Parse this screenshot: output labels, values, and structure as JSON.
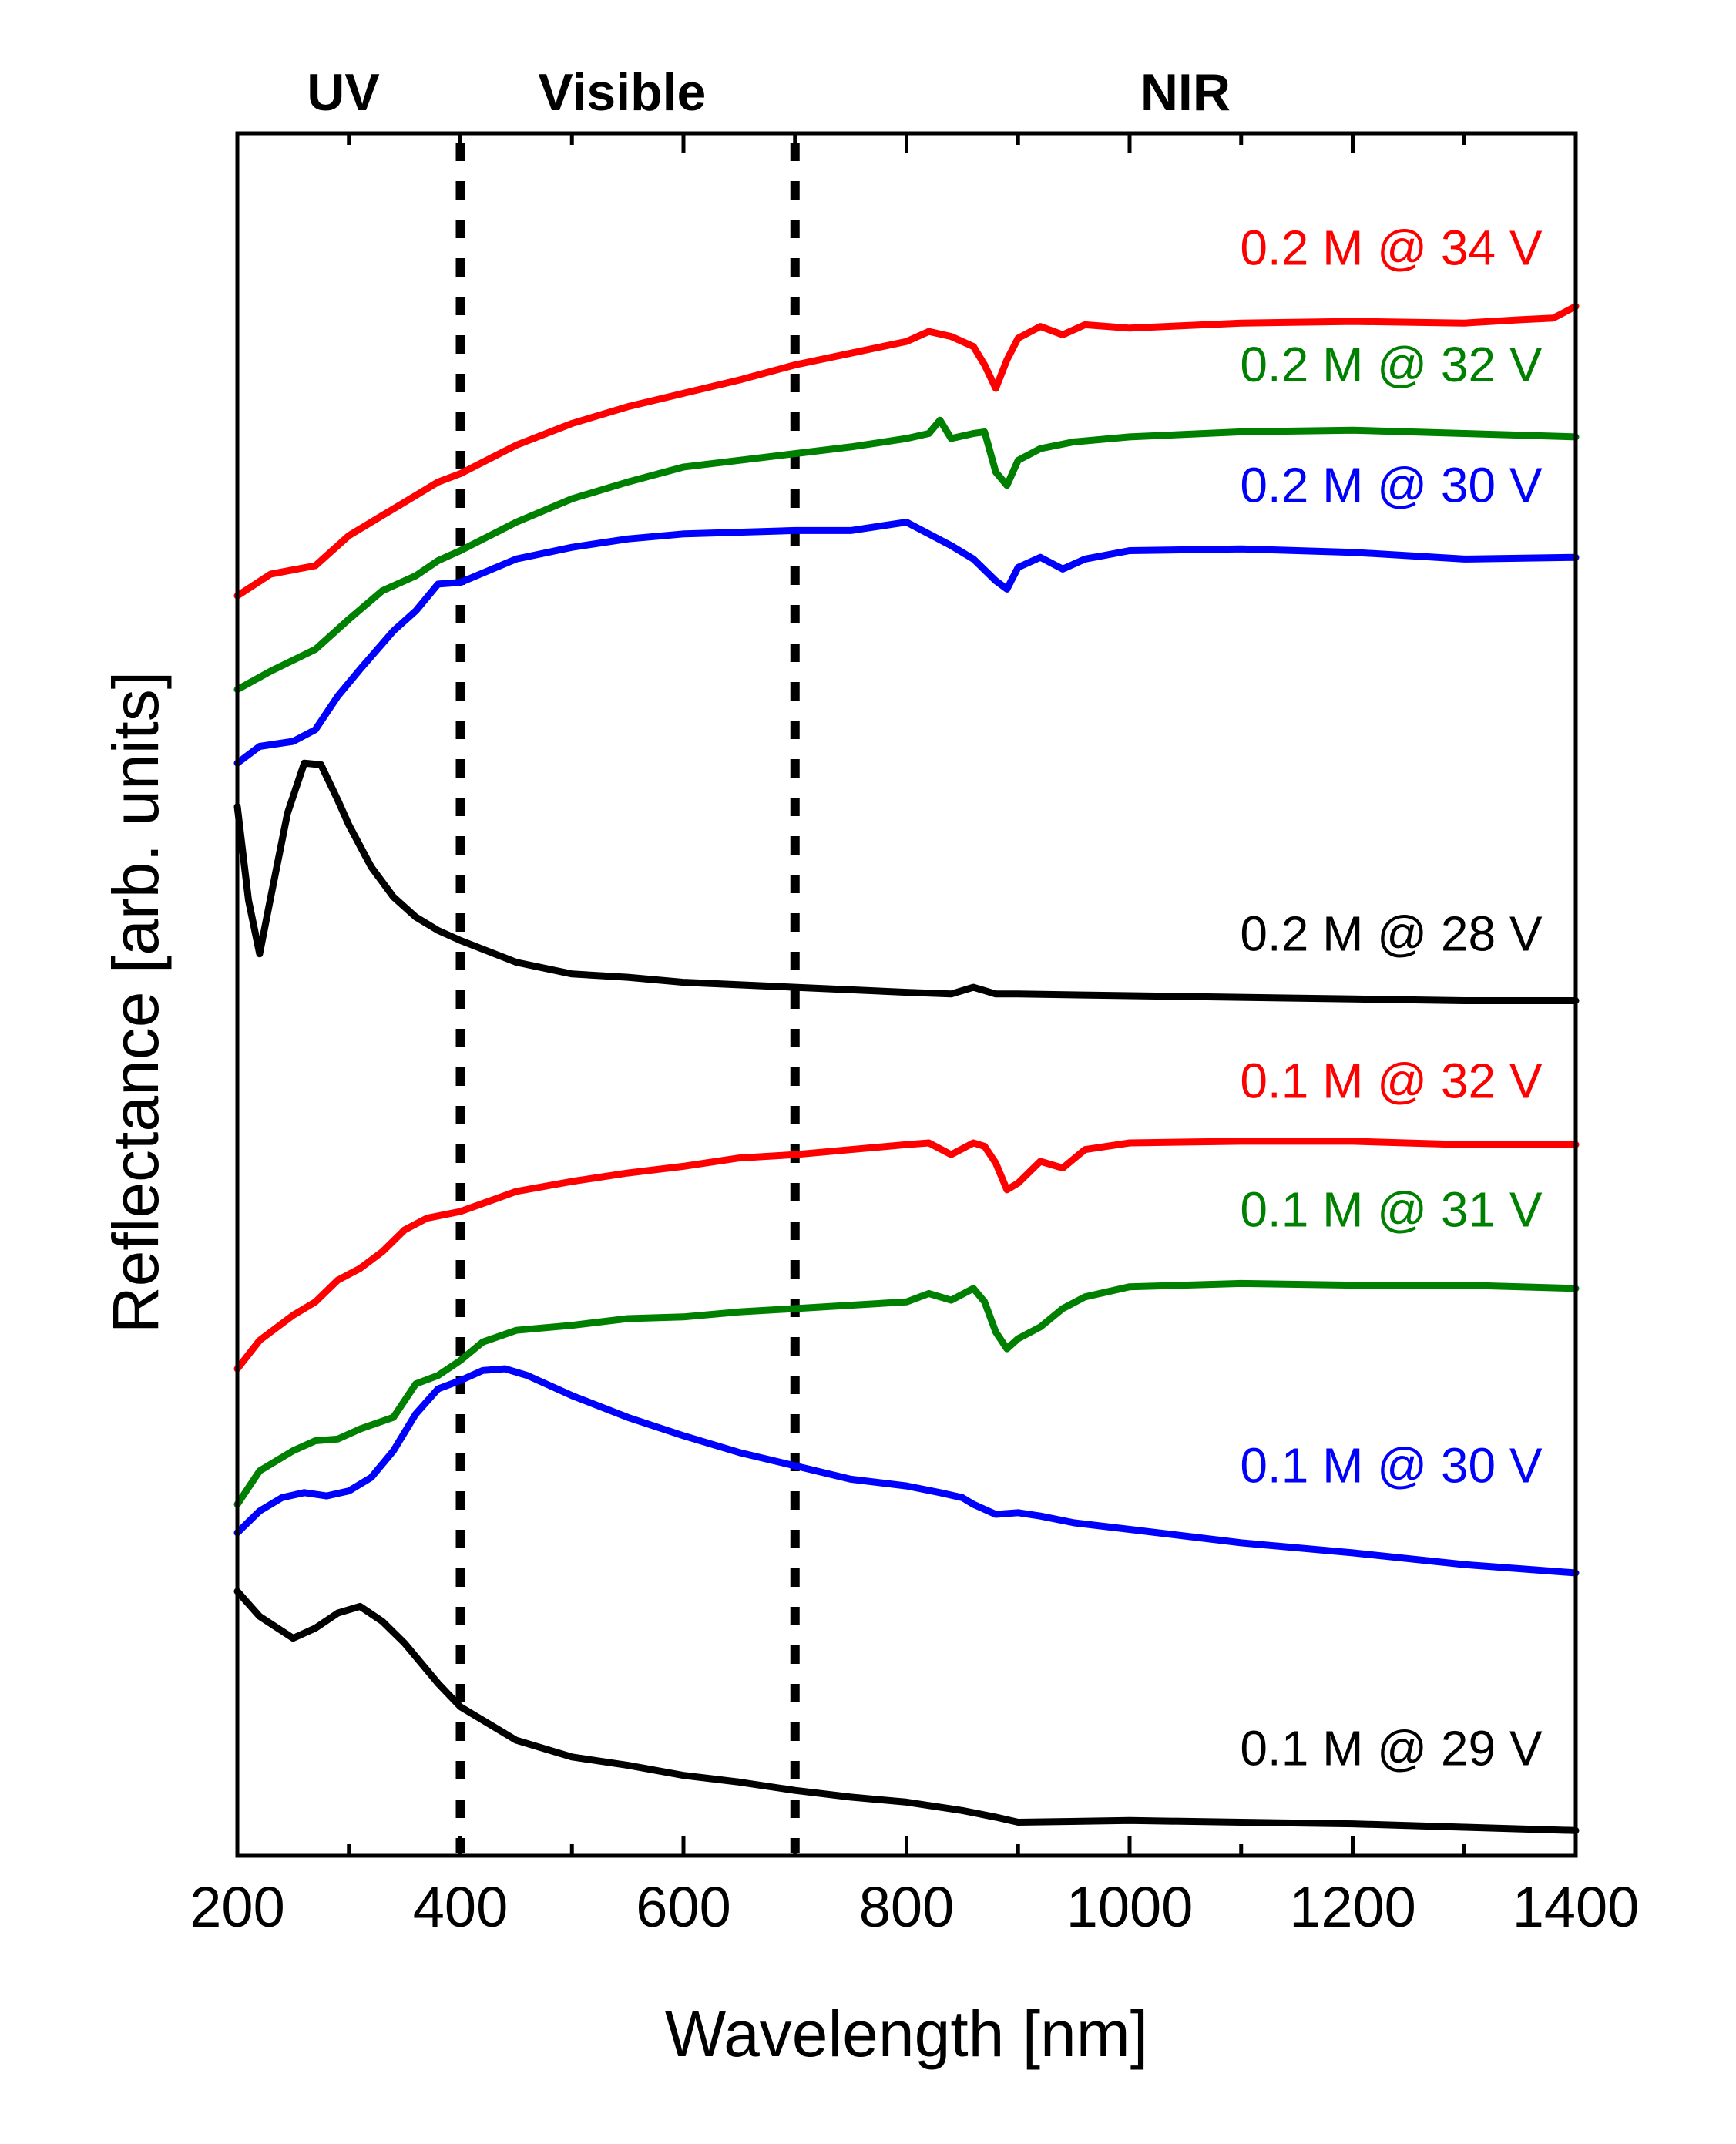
{
  "chart_data": {
    "type": "line",
    "title": "",
    "xlabel": "Wavelength [nm]",
    "ylabel": "Reflectance [arb. units]",
    "xlim": [
      200,
      1400
    ],
    "ylim": [
      0,
      100
    ],
    "y_ticks_shown": false,
    "x_ticks": [
      200,
      400,
      600,
      800,
      1000,
      1200,
      1400
    ],
    "x_tick_labels": [
      "200",
      "400",
      "600",
      "800",
      "1000",
      "1200",
      "1400"
    ],
    "x_minor_step": 100,
    "grid": false,
    "regions": [
      {
        "label": "UV",
        "x_center": 295
      },
      {
        "label": "Visible",
        "x_center": 545
      },
      {
        "label": "NIR",
        "x_center": 1050
      }
    ],
    "boundaries": [
      {
        "x": 400,
        "style": "dotted"
      },
      {
        "x": 700,
        "style": "dotted"
      }
    ],
    "series": [
      {
        "name": "0.2 M @ 34 V",
        "color": "#ff0000",
        "label_x": 1370,
        "label_y": 94.0,
        "points": [
          [
            200,
            74.2
          ],
          [
            230,
            75.5
          ],
          [
            270,
            76.0
          ],
          [
            300,
            77.8
          ],
          [
            330,
            79.0
          ],
          [
            360,
            80.2
          ],
          [
            380,
            81.0
          ],
          [
            400,
            81.5
          ],
          [
            450,
            83.2
          ],
          [
            500,
            84.5
          ],
          [
            550,
            85.5
          ],
          [
            600,
            86.3
          ],
          [
            650,
            87.1
          ],
          [
            700,
            88.0
          ],
          [
            750,
            88.7
          ],
          [
            800,
            89.4
          ],
          [
            820,
            90.0
          ],
          [
            840,
            89.7
          ],
          [
            860,
            89.1
          ],
          [
            870,
            88.0
          ],
          [
            880,
            86.6
          ],
          [
            890,
            88.3
          ],
          [
            900,
            89.6
          ],
          [
            920,
            90.3
          ],
          [
            940,
            89.8
          ],
          [
            960,
            90.4
          ],
          [
            1000,
            90.2
          ],
          [
            1100,
            90.5
          ],
          [
            1200,
            90.6
          ],
          [
            1300,
            90.5
          ],
          [
            1350,
            90.7
          ],
          [
            1380,
            90.8
          ],
          [
            1400,
            91.5
          ]
        ]
      },
      {
        "name": "0.2 M @ 32 V",
        "color": "#008000",
        "label_x": 1370,
        "label_y": 87.0,
        "points": [
          [
            200,
            68.6
          ],
          [
            230,
            69.7
          ],
          [
            270,
            71.0
          ],
          [
            300,
            72.8
          ],
          [
            330,
            74.5
          ],
          [
            360,
            75.4
          ],
          [
            380,
            76.3
          ],
          [
            400,
            76.9
          ],
          [
            450,
            78.6
          ],
          [
            500,
            80.0
          ],
          [
            550,
            81.0
          ],
          [
            600,
            81.9
          ],
          [
            650,
            82.3
          ],
          [
            700,
            82.7
          ],
          [
            750,
            83.1
          ],
          [
            800,
            83.6
          ],
          [
            820,
            83.9
          ],
          [
            830,
            84.7
          ],
          [
            840,
            83.6
          ],
          [
            860,
            83.9
          ],
          [
            870,
            84.0
          ],
          [
            880,
            81.6
          ],
          [
            890,
            80.8
          ],
          [
            900,
            82.3
          ],
          [
            920,
            83.0
          ],
          [
            950,
            83.4
          ],
          [
            1000,
            83.7
          ],
          [
            1100,
            84.0
          ],
          [
            1200,
            84.1
          ],
          [
            1300,
            83.9
          ],
          [
            1400,
            83.7
          ]
        ]
      },
      {
        "name": "0.2 M @ 30 V",
        "color": "#0000ff",
        "label_x": 1370,
        "label_y": 79.8,
        "points": [
          [
            200,
            64.2
          ],
          [
            220,
            65.2
          ],
          [
            250,
            65.5
          ],
          [
            270,
            66.2
          ],
          [
            290,
            68.2
          ],
          [
            310,
            69.8
          ],
          [
            340,
            72.1
          ],
          [
            360,
            73.3
          ],
          [
            380,
            74.9
          ],
          [
            400,
            75.0
          ],
          [
            450,
            76.4
          ],
          [
            500,
            77.1
          ],
          [
            550,
            77.6
          ],
          [
            600,
            77.9
          ],
          [
            650,
            78.0
          ],
          [
            700,
            78.1
          ],
          [
            750,
            78.1
          ],
          [
            800,
            78.6
          ],
          [
            820,
            77.9
          ],
          [
            840,
            77.2
          ],
          [
            860,
            76.4
          ],
          [
            880,
            75.1
          ],
          [
            890,
            74.6
          ],
          [
            900,
            75.9
          ],
          [
            920,
            76.5
          ],
          [
            940,
            75.8
          ],
          [
            960,
            76.4
          ],
          [
            1000,
            76.9
          ],
          [
            1100,
            77.0
          ],
          [
            1200,
            76.8
          ],
          [
            1300,
            76.4
          ],
          [
            1400,
            76.5
          ]
        ]
      },
      {
        "name": "0.2 M @ 28 V",
        "color": "#000000",
        "label_x": 1370,
        "label_y": 53.0,
        "points": [
          [
            200,
            61.6
          ],
          [
            210,
            56.0
          ],
          [
            220,
            52.8
          ],
          [
            230,
            56.2
          ],
          [
            245,
            61.2
          ],
          [
            260,
            64.2
          ],
          [
            275,
            64.1
          ],
          [
            290,
            62.0
          ],
          [
            300,
            60.5
          ],
          [
            320,
            58.0
          ],
          [
            340,
            56.2
          ],
          [
            360,
            55.0
          ],
          [
            380,
            54.2
          ],
          [
            400,
            53.6
          ],
          [
            450,
            52.3
          ],
          [
            500,
            51.6
          ],
          [
            550,
            51.4
          ],
          [
            600,
            51.1
          ],
          [
            700,
            50.8
          ],
          [
            800,
            50.5
          ],
          [
            840,
            50.4
          ],
          [
            860,
            50.8
          ],
          [
            880,
            50.4
          ],
          [
            900,
            50.4
          ],
          [
            1000,
            50.3
          ],
          [
            1200,
            50.1
          ],
          [
            1300,
            50.0
          ],
          [
            1400,
            50.0
          ]
        ]
      },
      {
        "name": "0.1 M @ 32 V",
        "color": "#ff0000",
        "label_x": 1370,
        "label_y": 44.2,
        "points": [
          [
            200,
            28.0
          ],
          [
            220,
            29.7
          ],
          [
            250,
            31.2
          ],
          [
            270,
            32.0
          ],
          [
            290,
            33.3
          ],
          [
            310,
            34.0
          ],
          [
            330,
            35.0
          ],
          [
            350,
            36.3
          ],
          [
            370,
            37.0
          ],
          [
            400,
            37.4
          ],
          [
            450,
            38.6
          ],
          [
            500,
            39.2
          ],
          [
            550,
            39.7
          ],
          [
            600,
            40.1
          ],
          [
            650,
            40.6
          ],
          [
            700,
            40.8
          ],
          [
            750,
            41.1
          ],
          [
            800,
            41.4
          ],
          [
            820,
            41.5
          ],
          [
            840,
            40.8
          ],
          [
            860,
            41.5
          ],
          [
            870,
            41.3
          ],
          [
            880,
            40.3
          ],
          [
            890,
            38.7
          ],
          [
            900,
            39.1
          ],
          [
            920,
            40.4
          ],
          [
            940,
            40.0
          ],
          [
            960,
            41.1
          ],
          [
            1000,
            41.5
          ],
          [
            1100,
            41.6
          ],
          [
            1200,
            41.6
          ],
          [
            1300,
            41.4
          ],
          [
            1400,
            41.4
          ]
        ]
      },
      {
        "name": "0.1 M @ 31 V",
        "color": "#008000",
        "label_x": 1370,
        "label_y": 36.5,
        "points": [
          [
            200,
            19.9
          ],
          [
            220,
            21.9
          ],
          [
            250,
            23.1
          ],
          [
            270,
            23.7
          ],
          [
            290,
            23.8
          ],
          [
            310,
            24.4
          ],
          [
            340,
            25.1
          ],
          [
            360,
            27.1
          ],
          [
            380,
            27.6
          ],
          [
            400,
            28.5
          ],
          [
            420,
            29.6
          ],
          [
            450,
            30.3
          ],
          [
            500,
            30.6
          ],
          [
            550,
            31.0
          ],
          [
            600,
            31.1
          ],
          [
            650,
            31.4
          ],
          [
            700,
            31.6
          ],
          [
            750,
            31.8
          ],
          [
            800,
            32.0
          ],
          [
            820,
            32.5
          ],
          [
            840,
            32.1
          ],
          [
            860,
            32.8
          ],
          [
            870,
            32.0
          ],
          [
            880,
            30.2
          ],
          [
            890,
            29.2
          ],
          [
            900,
            29.8
          ],
          [
            920,
            30.5
          ],
          [
            940,
            31.6
          ],
          [
            960,
            32.3
          ],
          [
            1000,
            32.9
          ],
          [
            1100,
            33.1
          ],
          [
            1200,
            33.0
          ],
          [
            1300,
            33.0
          ],
          [
            1400,
            32.8
          ]
        ]
      },
      {
        "name": "0.1 M @ 30 V",
        "color": "#0000ff",
        "label_x": 1370,
        "label_y": 21.2,
        "points": [
          [
            200,
            18.2
          ],
          [
            220,
            19.5
          ],
          [
            240,
            20.3
          ],
          [
            260,
            20.6
          ],
          [
            280,
            20.4
          ],
          [
            300,
            20.7
          ],
          [
            320,
            21.5
          ],
          [
            340,
            23.1
          ],
          [
            360,
            25.3
          ],
          [
            380,
            26.8
          ],
          [
            400,
            27.3
          ],
          [
            420,
            27.9
          ],
          [
            440,
            28.0
          ],
          [
            460,
            27.6
          ],
          [
            480,
            27.0
          ],
          [
            500,
            26.4
          ],
          [
            550,
            25.1
          ],
          [
            600,
            24.0
          ],
          [
            650,
            23.0
          ],
          [
            700,
            22.2
          ],
          [
            750,
            21.4
          ],
          [
            800,
            21.0
          ],
          [
            830,
            20.6
          ],
          [
            850,
            20.3
          ],
          [
            860,
            19.9
          ],
          [
            870,
            19.6
          ],
          [
            880,
            19.3
          ],
          [
            900,
            19.4
          ],
          [
            920,
            19.2
          ],
          [
            950,
            18.8
          ],
          [
            1000,
            18.4
          ],
          [
            1100,
            17.6
          ],
          [
            1200,
            17.0
          ],
          [
            1300,
            16.3
          ],
          [
            1400,
            15.8
          ]
        ]
      },
      {
        "name": "0.1 M @ 29 V",
        "color": "#000000",
        "label_x": 1370,
        "label_y": 4.3,
        "points": [
          [
            200,
            14.7
          ],
          [
            220,
            13.2
          ],
          [
            250,
            11.9
          ],
          [
            270,
            12.5
          ],
          [
            290,
            13.4
          ],
          [
            310,
            13.8
          ],
          [
            330,
            12.9
          ],
          [
            350,
            11.6
          ],
          [
            380,
            9.2
          ],
          [
            400,
            7.8
          ],
          [
            450,
            5.8
          ],
          [
            500,
            4.8
          ],
          [
            550,
            4.3
          ],
          [
            600,
            3.7
          ],
          [
            650,
            3.3
          ],
          [
            700,
            2.8
          ],
          [
            750,
            2.4
          ],
          [
            800,
            2.1
          ],
          [
            850,
            1.6
          ],
          [
            880,
            1.2
          ],
          [
            900,
            0.9
          ],
          [
            1000,
            1.0
          ],
          [
            1100,
            0.9
          ],
          [
            1200,
            0.8
          ],
          [
            1300,
            0.6
          ],
          [
            1400,
            0.4
          ]
        ]
      }
    ]
  }
}
